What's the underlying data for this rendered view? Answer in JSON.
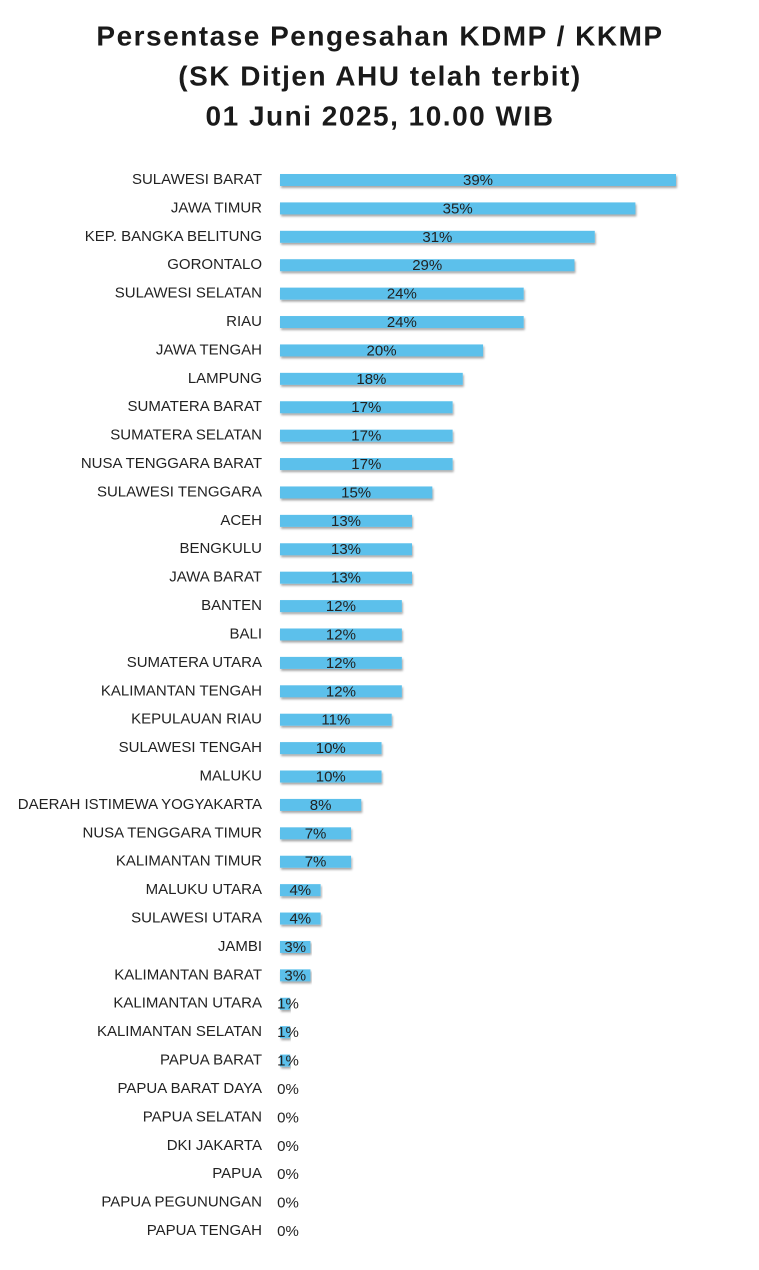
{
  "chart_data": {
    "type": "hbar",
    "title": [
      "Persentase Pengesahan KDMP / KKMP",
      "(SK Ditjen AHU telah terbit)",
      "01 Juni 2025, 10.00 WIB"
    ],
    "color": "#5bc0eb",
    "categories": [
      "SULAWESI BARAT",
      "JAWA TIMUR",
      "KEP. BANGKA BELITUNG",
      "GORONTALO",
      "SULAWESI SELATAN",
      "RIAU",
      "JAWA TENGAH",
      "LAMPUNG",
      "SUMATERA BARAT",
      "SUMATERA SELATAN",
      "NUSA TENGGARA BARAT",
      "SULAWESI TENGGARA",
      "ACEH",
      "BENGKULU",
      "JAWA BARAT",
      "BANTEN",
      "BALI",
      "SUMATERA UTARA",
      "KALIMANTAN TENGAH",
      "KEPULAUAN RIAU",
      "SULAWESI TENGAH",
      "MALUKU",
      "DAERAH ISTIMEWA YOGYAKARTA",
      "NUSA TENGGARA TIMUR",
      "KALIMANTAN TIMUR",
      "MALUKU UTARA",
      "SULAWESI UTARA",
      "JAMBI",
      "KALIMANTAN BARAT",
      "KALIMANTAN UTARA",
      "KALIMANTAN SELATAN",
      "PAPUA BARAT",
      "PAPUA BARAT DAYA",
      "PAPUA SELATAN",
      "DKI JAKARTA",
      "PAPUA",
      "PAPUA PEGUNUNGAN",
      "PAPUA TENGAH"
    ],
    "values": [
      39,
      35,
      31,
      29,
      24,
      24,
      20,
      18,
      17,
      17,
      17,
      15,
      13,
      13,
      13,
      12,
      12,
      12,
      12,
      11,
      10,
      10,
      8,
      7,
      7,
      4,
      4,
      3,
      3,
      1,
      1,
      1,
      0,
      0,
      0,
      0,
      0,
      0
    ],
    "value_labels": [
      "39%",
      "35%",
      "31%",
      "29%",
      "24%",
      "24%",
      "20%",
      "18%",
      "17%",
      "17%",
      "17%",
      "15%",
      "13%",
      "13%",
      "13%",
      "12%",
      "12%",
      "12%",
      "12%",
      "11%",
      "10%",
      "10%",
      "8%",
      "7%",
      "7%",
      "4%",
      "4%",
      "3%",
      "3%",
      "1%",
      "1%",
      "1%",
      "0%",
      "0%",
      "0%",
      "0%",
      "0%",
      "0%"
    ]
  }
}
